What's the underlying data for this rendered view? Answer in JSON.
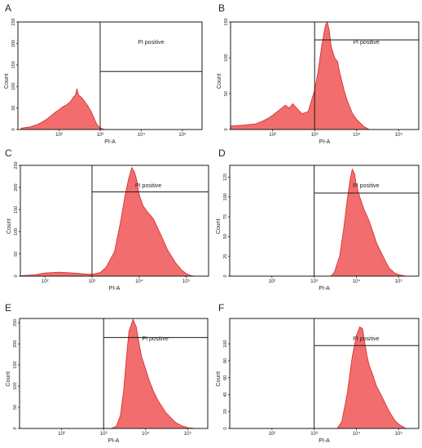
{
  "colors": {
    "fill": "#f26d6d",
    "stroke": "#d42a2a",
    "frame": "#1a1a1a",
    "text": "#222222"
  },
  "chart_data": [
    {
      "type": "area",
      "panel_letter": "A",
      "xlabel": "PI-A",
      "ylabel": "Count",
      "x_scale": "log",
      "xlim": [
        10,
        300000
      ],
      "ylim": [
        0,
        250
      ],
      "x_ticks": [
        {
          "v": 100,
          "t": "10²"
        },
        {
          "v": 1000,
          "t": "10³"
        },
        {
          "v": 10000,
          "t": "10⁴"
        },
        {
          "v": 100000,
          "t": "10⁵"
        }
      ],
      "y_ticks": [
        0,
        50,
        100,
        150,
        200,
        250
      ],
      "gate": {
        "label": "PI positive",
        "x_start": 1000,
        "y": 135
      },
      "x": [
        12,
        20,
        30,
        40,
        50,
        60,
        80,
        100,
        120,
        150,
        180,
        200,
        220,
        250,
        270,
        300,
        350,
        400,
        500,
        600,
        700,
        800,
        900,
        1000,
        1100,
        1200,
        1400
      ],
      "y": [
        3,
        6,
        12,
        18,
        24,
        30,
        40,
        46,
        52,
        57,
        63,
        68,
        75,
        80,
        95,
        80,
        75,
        68,
        55,
        42,
        28,
        15,
        8,
        4,
        2,
        1,
        0
      ]
    },
    {
      "type": "area",
      "panel_letter": "B",
      "xlabel": "PI-A",
      "ylabel": "Count",
      "x_scale": "log",
      "xlim": [
        10,
        300000
      ],
      "ylim": [
        0,
        150
      ],
      "x_ticks": [
        {
          "v": 100,
          "t": "10²"
        },
        {
          "v": 1000,
          "t": "10³"
        },
        {
          "v": 10000,
          "t": "10⁴"
        },
        {
          "v": 100000,
          "t": "10⁵"
        }
      ],
      "y_ticks": [
        0,
        50,
        100,
        150
      ],
      "gate": {
        "label": "PI positive",
        "x_start": 1000,
        "y": 125
      },
      "x": [
        10,
        20,
        40,
        60,
        80,
        100,
        150,
        200,
        250,
        300,
        400,
        500,
        700,
        1000,
        1200,
        1500,
        1800,
        2000,
        2200,
        2500,
        3000,
        3500,
        4000,
        5000,
        6000,
        8000,
        10000,
        15000,
        20000
      ],
      "y": [
        5,
        6,
        8,
        12,
        16,
        20,
        28,
        34,
        30,
        36,
        28,
        22,
        25,
        55,
        80,
        120,
        145,
        150,
        140,
        115,
        100,
        95,
        78,
        55,
        40,
        22,
        14,
        4,
        0
      ]
    },
    {
      "type": "area",
      "panel_letter": "C",
      "xlabel": "PI-A",
      "ylabel": "Count",
      "x_scale": "log",
      "xlim": [
        30,
        300000
      ],
      "ylim": [
        0,
        250
      ],
      "x_ticks": [
        {
          "v": 100,
          "t": "10²"
        },
        {
          "v": 1000,
          "t": "10³"
        },
        {
          "v": 10000,
          "t": "10⁴"
        },
        {
          "v": 100000,
          "t": "10⁵"
        }
      ],
      "y_ticks": [
        0,
        50,
        100,
        150,
        200,
        250
      ],
      "gate": {
        "label": "PI positive",
        "x_start": 1000,
        "y": 190
      },
      "x": [
        30,
        60,
        100,
        200,
        400,
        700,
        1000,
        1500,
        2000,
        3000,
        4000,
        5000,
        6000,
        7000,
        8000,
        9000,
        10000,
        12000,
        15000,
        20000,
        30000,
        40000,
        60000,
        80000,
        100000,
        120000,
        150000
      ],
      "y": [
        1,
        3,
        7,
        9,
        7,
        5,
        4,
        8,
        20,
        55,
        120,
        180,
        220,
        245,
        235,
        215,
        185,
        160,
        145,
        130,
        90,
        60,
        30,
        14,
        6,
        2,
        0
      ]
    },
    {
      "type": "area",
      "panel_letter": "D",
      "xlabel": "PI-A",
      "ylabel": "Count",
      "x_scale": "log",
      "xlim": [
        10,
        300000
      ],
      "ylim": [
        0,
        140
      ],
      "x_ticks": [
        {
          "v": 100,
          "t": "10²"
        },
        {
          "v": 1000,
          "t": "10³"
        },
        {
          "v": 10000,
          "t": "10⁴"
        },
        {
          "v": 100000,
          "t": "10⁵"
        }
      ],
      "y_ticks": [
        0,
        25,
        50,
        75,
        100,
        125
      ],
      "gate": {
        "label": "PI positive",
        "x_start": 1000,
        "y": 105
      },
      "x": [
        2500,
        3000,
        4000,
        5000,
        6000,
        7000,
        8000,
        9000,
        10000,
        12000,
        15000,
        20000,
        25000,
        30000,
        40000,
        50000,
        60000,
        80000,
        100000,
        150000
      ],
      "y": [
        0,
        5,
        25,
        60,
        95,
        120,
        135,
        130,
        115,
        100,
        85,
        70,
        55,
        42,
        28,
        18,
        10,
        4,
        2,
        0
      ]
    },
    {
      "type": "area",
      "panel_letter": "E",
      "xlabel": "PI-A",
      "ylabel": "Count",
      "x_scale": "log",
      "xlim": [
        10,
        300000
      ],
      "ylim": [
        0,
        260
      ],
      "x_ticks": [
        {
          "v": 100,
          "t": "10²"
        },
        {
          "v": 1000,
          "t": "10³"
        },
        {
          "v": 10000,
          "t": "10⁴"
        },
        {
          "v": 100000,
          "t": "10⁵"
        }
      ],
      "y_ticks": [
        0,
        50,
        100,
        150,
        200,
        250
      ],
      "gate": {
        "label": "PI positive",
        "x_start": 1000,
        "y": 215
      },
      "x": [
        1500,
        2000,
        2500,
        3000,
        3500,
        4000,
        5000,
        6000,
        7000,
        8000,
        10000,
        12000,
        15000,
        20000,
        25000,
        30000,
        40000,
        50000,
        70000,
        100000,
        150000
      ],
      "y": [
        0,
        5,
        30,
        90,
        170,
        230,
        258,
        240,
        200,
        170,
        140,
        115,
        90,
        65,
        50,
        38,
        25,
        15,
        7,
        2,
        0
      ]
    },
    {
      "type": "area",
      "panel_letter": "F",
      "xlabel": "PI-A",
      "ylabel": "Count",
      "x_scale": "log",
      "xlim": [
        10,
        300000
      ],
      "ylim": [
        0,
        130
      ],
      "x_ticks": [
        {
          "v": 100,
          "t": "10²"
        },
        {
          "v": 1000,
          "t": "10³"
        },
        {
          "v": 10000,
          "t": "10⁴"
        },
        {
          "v": 100000,
          "t": "10⁵"
        }
      ],
      "y_ticks": [
        0,
        20,
        40,
        60,
        80,
        100
      ],
      "gate": {
        "label": "PI positive",
        "x_start": 1000,
        "y": 98
      },
      "x": [
        3500,
        4500,
        6000,
        8000,
        10000,
        12000,
        14000,
        16000,
        18000,
        20000,
        25000,
        30000,
        40000,
        50000,
        60000,
        80000,
        100000,
        150000
      ],
      "y": [
        0,
        8,
        40,
        85,
        110,
        120,
        118,
        100,
        85,
        75,
        62,
        50,
        38,
        28,
        20,
        10,
        5,
        0
      ]
    }
  ]
}
